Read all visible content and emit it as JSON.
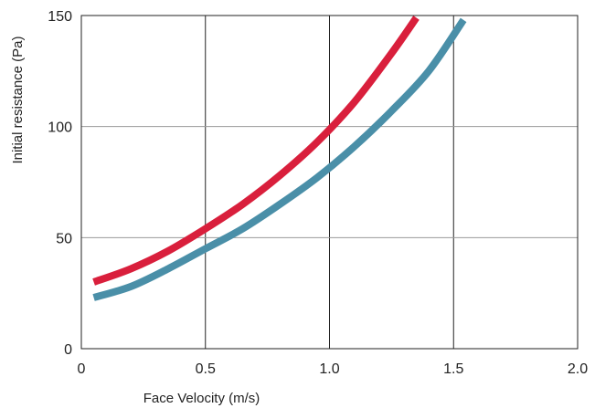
{
  "chart_data": {
    "type": "line",
    "title": "",
    "xlabel": "Face Velocity (m/s)",
    "ylabel": "Initial resistance (Pa)",
    "xlim": [
      0,
      2.0
    ],
    "ylim": [
      0,
      150
    ],
    "x_ticks": [
      0,
      0.5,
      1.0,
      1.5,
      2.0
    ],
    "x_tick_labels": [
      "0",
      "0.5",
      "1.0",
      "1.5",
      "2.0"
    ],
    "y_ticks": [
      0,
      50,
      100,
      150
    ],
    "y_tick_labels": [
      "0",
      "50",
      "100",
      "150"
    ],
    "grid": true,
    "legend": "none",
    "series": [
      {
        "color": "#d91f3c",
        "x": [
          0.05,
          0.2,
          0.35,
          0.5,
          0.65,
          0.8,
          0.95,
          1.1,
          1.25,
          1.35
        ],
        "y": [
          30,
          36,
          44,
          54,
          65,
          78,
          93,
          111,
          133,
          149
        ]
      },
      {
        "color": "#4a8fa8",
        "x": [
          0.05,
          0.2,
          0.35,
          0.5,
          0.65,
          0.8,
          0.95,
          1.1,
          1.25,
          1.4,
          1.54
        ],
        "y": [
          23,
          28,
          36,
          45,
          54,
          65,
          77,
          91,
          107,
          125,
          148
        ]
      }
    ]
  }
}
